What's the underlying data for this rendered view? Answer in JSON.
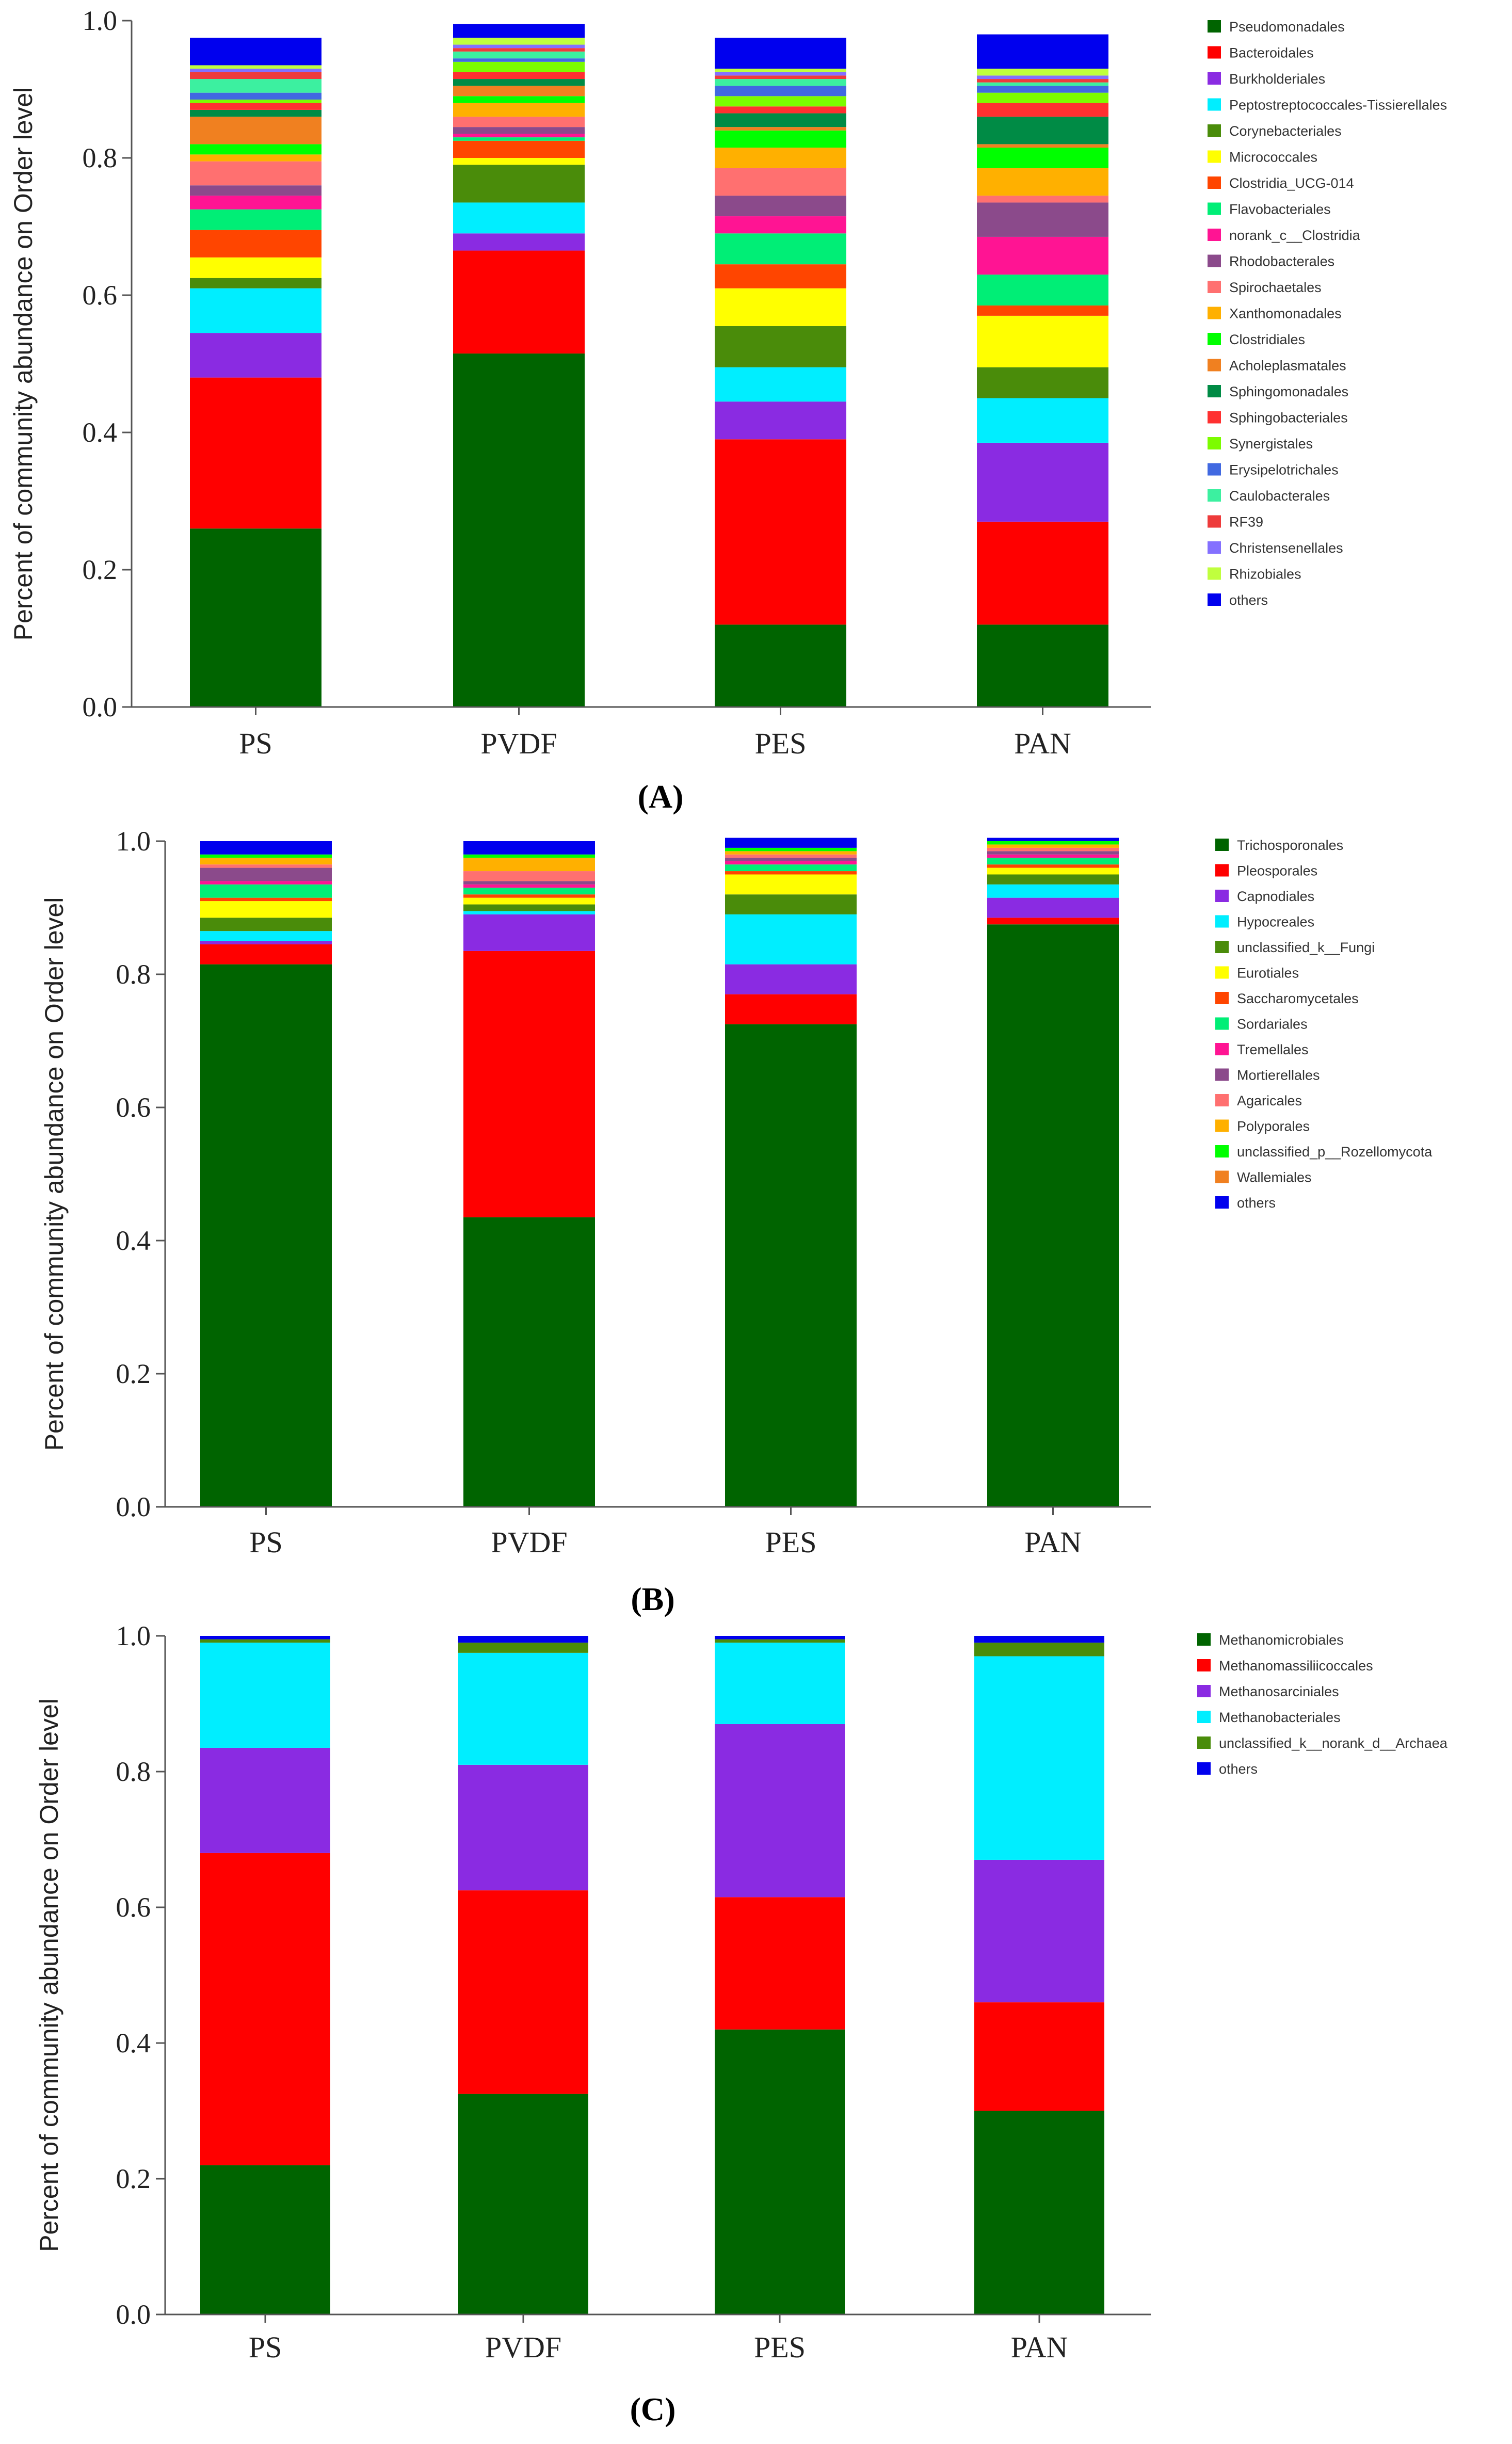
{
  "chart_data": [
    {
      "type": "bar",
      "stacked": true,
      "panel_label": "(A)",
      "ylabel": "Percent of community abundance on Order level",
      "ylim": [
        0,
        1
      ],
      "yticks": [
        "0.0",
        "0.2",
        "0.4",
        "0.6",
        "0.8",
        "1.0"
      ],
      "categories": [
        "PS",
        "PVDF",
        "PES",
        "PAN"
      ],
      "legend_position": "right",
      "series": [
        {
          "name": "Pseudomonadales",
          "color": "#006400",
          "values": [
            0.26,
            0.515,
            0.12,
            0.12
          ]
        },
        {
          "name": "Bacteroidales",
          "color": "#ff0000",
          "values": [
            0.22,
            0.15,
            0.27,
            0.15
          ]
        },
        {
          "name": "Burkholderiales",
          "color": "#8a2be2",
          "values": [
            0.065,
            0.025,
            0.055,
            0.115
          ]
        },
        {
          "name": "Peptostreptococcales-Tissierellales",
          "color": "#00eeff",
          "values": [
            0.065,
            0.045,
            0.05,
            0.065
          ]
        },
        {
          "name": "Corynebacteriales",
          "color": "#4a8c0a",
          "values": [
            0.015,
            0.055,
            0.06,
            0.045
          ]
        },
        {
          "name": "Micrococcales",
          "color": "#ffff00",
          "values": [
            0.03,
            0.01,
            0.055,
            0.075
          ]
        },
        {
          "name": "Clostridia_UCG-014",
          "color": "#ff4500",
          "values": [
            0.04,
            0.025,
            0.035,
            0.015
          ]
        },
        {
          "name": "Flavobacteriales",
          "color": "#00ee76",
          "values": [
            0.03,
            0.005,
            0.045,
            0.045
          ]
        },
        {
          "name": "norank_c__Clostridia",
          "color": "#ff1493",
          "values": [
            0.02,
            0.005,
            0.025,
            0.055
          ]
        },
        {
          "name": "Rhodobacterales",
          "color": "#8b4a8b",
          "values": [
            0.015,
            0.01,
            0.03,
            0.05
          ]
        },
        {
          "name": "Spirochaetales",
          "color": "#ff7070",
          "values": [
            0.035,
            0.015,
            0.04,
            0.01
          ]
        },
        {
          "name": "Xanthomonadales",
          "color": "#ffb000",
          "values": [
            0.01,
            0.02,
            0.03,
            0.04
          ]
        },
        {
          "name": "Clostridiales",
          "color": "#00ff00",
          "values": [
            0.015,
            0.01,
            0.025,
            0.03
          ]
        },
        {
          "name": "Acholeplasmatales",
          "color": "#f08020",
          "values": [
            0.04,
            0.015,
            0.005,
            0.005
          ]
        },
        {
          "name": "Sphingomonadales",
          "color": "#008b45",
          "values": [
            0.01,
            0.01,
            0.02,
            0.04
          ]
        },
        {
          "name": "Sphingobacteriales",
          "color": "#ff3030",
          "values": [
            0.01,
            0.01,
            0.01,
            0.02
          ]
        },
        {
          "name": "Synergistales",
          "color": "#7cfc00",
          "values": [
            0.005,
            0.015,
            0.015,
            0.015
          ]
        },
        {
          "name": "Erysipelotrichales",
          "color": "#4169e1",
          "values": [
            0.01,
            0.005,
            0.015,
            0.01
          ]
        },
        {
          "name": "Caulobacterales",
          "color": "#3cf0a0",
          "values": [
            0.02,
            0.01,
            0.01,
            0.005
          ]
        },
        {
          "name": "RF39",
          "color": "#ee3b3b",
          "values": [
            0.01,
            0.005,
            0.005,
            0.005
          ]
        },
        {
          "name": "Christensenellales",
          "color": "#8470ff",
          "values": [
            0.005,
            0.005,
            0.005,
            0.005
          ]
        },
        {
          "name": "Rhizobiales",
          "color": "#c0ff3e",
          "values": [
            0.005,
            0.01,
            0.005,
            0.01
          ]
        },
        {
          "name": "others",
          "color": "#0000ee",
          "values": [
            0.04,
            0.02,
            0.045,
            0.05
          ]
        }
      ]
    },
    {
      "type": "bar",
      "stacked": true,
      "panel_label": "(B)",
      "ylabel": "Percent of community abundance on Order level",
      "ylim": [
        0,
        1
      ],
      "yticks": [
        "0.0",
        "0.2",
        "0.4",
        "0.6",
        "0.8",
        "1.0"
      ],
      "categories": [
        "PS",
        "PVDF",
        "PES",
        "PAN"
      ],
      "legend_position": "right",
      "series": [
        {
          "name": "Trichosporonales",
          "color": "#006400",
          "values": [
            0.815,
            0.435,
            0.725,
            0.875
          ]
        },
        {
          "name": "Pleosporales",
          "color": "#ff0000",
          "values": [
            0.03,
            0.4,
            0.045,
            0.01
          ]
        },
        {
          "name": "Capnodiales",
          "color": "#8a2be2",
          "values": [
            0.005,
            0.055,
            0.045,
            0.03
          ]
        },
        {
          "name": "Hypocreales",
          "color": "#00eeff",
          "values": [
            0.015,
            0.005,
            0.075,
            0.02
          ]
        },
        {
          "name": "unclassified_k__Fungi",
          "color": "#4a8c0a",
          "values": [
            0.02,
            0.01,
            0.03,
            0.015
          ]
        },
        {
          "name": "Eurotiales",
          "color": "#ffff00",
          "values": [
            0.025,
            0.01,
            0.03,
            0.01
          ]
        },
        {
          "name": "Saccharomycetales",
          "color": "#ff4500",
          "values": [
            0.005,
            0.005,
            0.005,
            0.005
          ]
        },
        {
          "name": "Sordariales",
          "color": "#00ee76",
          "values": [
            0.02,
            0.01,
            0.01,
            0.01
          ]
        },
        {
          "name": "Tremellales",
          "color": "#ff1493",
          "values": [
            0.005,
            0.005,
            0.005,
            0.005
          ]
        },
        {
          "name": "Mortierellales",
          "color": "#8b4a8b",
          "values": [
            0.02,
            0.005,
            0.005,
            0.005
          ]
        },
        {
          "name": "Agaricales",
          "color": "#ff7070",
          "values": [
            0.005,
            0.015,
            0.005,
            0.005
          ]
        },
        {
          "name": "Polyporales",
          "color": "#ffb000",
          "values": [
            0.01,
            0.02,
            0.005,
            0.005
          ]
        },
        {
          "name": "unclassified_p__Rozellomycota",
          "color": "#00ff00",
          "values": [
            0.005,
            0.005,
            0.005,
            0.005
          ]
        },
        {
          "name": "Wallemiales",
          "color": "#f08020",
          "values": [
            0.0,
            0.0,
            0.0,
            0.0
          ]
        },
        {
          "name": "others",
          "color": "#0000ee",
          "values": [
            0.02,
            0.02,
            0.015,
            0.005
          ]
        }
      ]
    },
    {
      "type": "bar",
      "stacked": true,
      "panel_label": "(C)",
      "ylabel": "Percent of community abundance on Order level",
      "ylim": [
        0,
        1
      ],
      "yticks": [
        "0.0",
        "0.2",
        "0.4",
        "0.6",
        "0.8",
        "1.0"
      ],
      "categories": [
        "PS",
        "PVDF",
        "PES",
        "PAN"
      ],
      "legend_position": "right",
      "series": [
        {
          "name": "Methanomicrobiales",
          "color": "#006400",
          "values": [
            0.22,
            0.325,
            0.42,
            0.3
          ]
        },
        {
          "name": "Methanomassiliicoccales",
          "color": "#ff0000",
          "values": [
            0.46,
            0.3,
            0.195,
            0.16
          ]
        },
        {
          "name": "Methanosarciniales",
          "color": "#8a2be2",
          "values": [
            0.155,
            0.185,
            0.255,
            0.21
          ]
        },
        {
          "name": "Methanobacteriales",
          "color": "#00eeff",
          "values": [
            0.155,
            0.165,
            0.12,
            0.3
          ]
        },
        {
          "name": "unclassified_k__norank_d__Archaea",
          "color": "#4a8c0a",
          "values": [
            0.005,
            0.015,
            0.005,
            0.02
          ]
        },
        {
          "name": "others",
          "color": "#0000ee",
          "values": [
            0.005,
            0.01,
            0.005,
            0.01
          ]
        }
      ]
    }
  ]
}
